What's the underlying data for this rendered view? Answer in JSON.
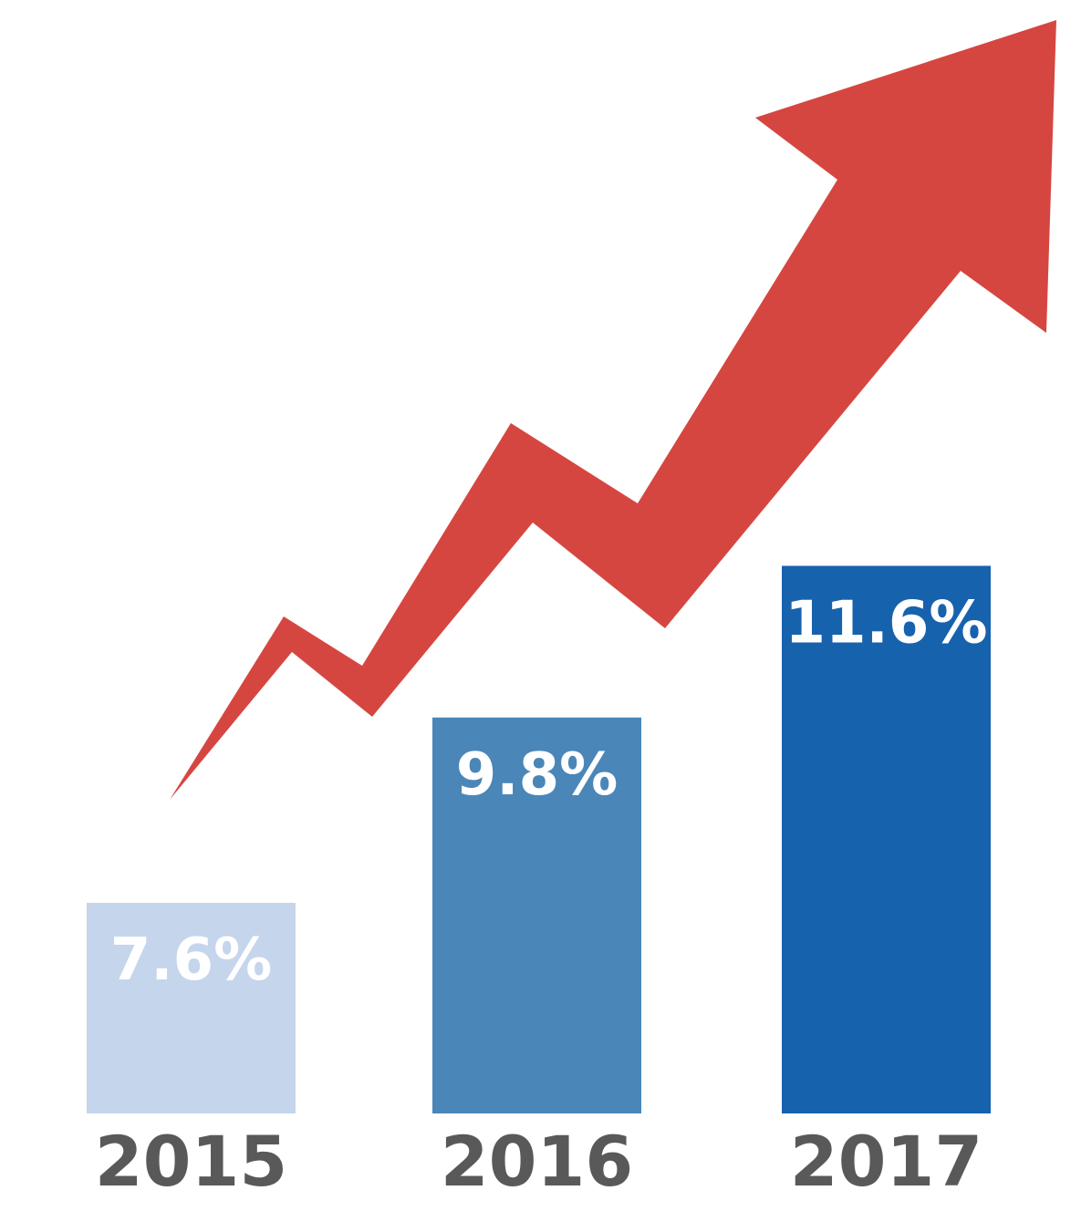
{
  "chart_data": {
    "type": "bar",
    "categories": [
      "2015",
      "2016",
      "2017"
    ],
    "values": [
      7.6,
      9.8,
      11.6
    ],
    "value_labels": [
      "7.6%",
      "9.8%",
      "11.6%"
    ],
    "title": "",
    "xlabel": "",
    "ylabel": "",
    "grid": false,
    "legend": "none",
    "bar_colors": [
      "#c5d5ec",
      "#4a86b8",
      "#1762ad"
    ],
    "label_color": "#ffffff",
    "category_color": "#595959",
    "trend_arrow": {
      "color": "#d64640",
      "direction": "up"
    }
  }
}
